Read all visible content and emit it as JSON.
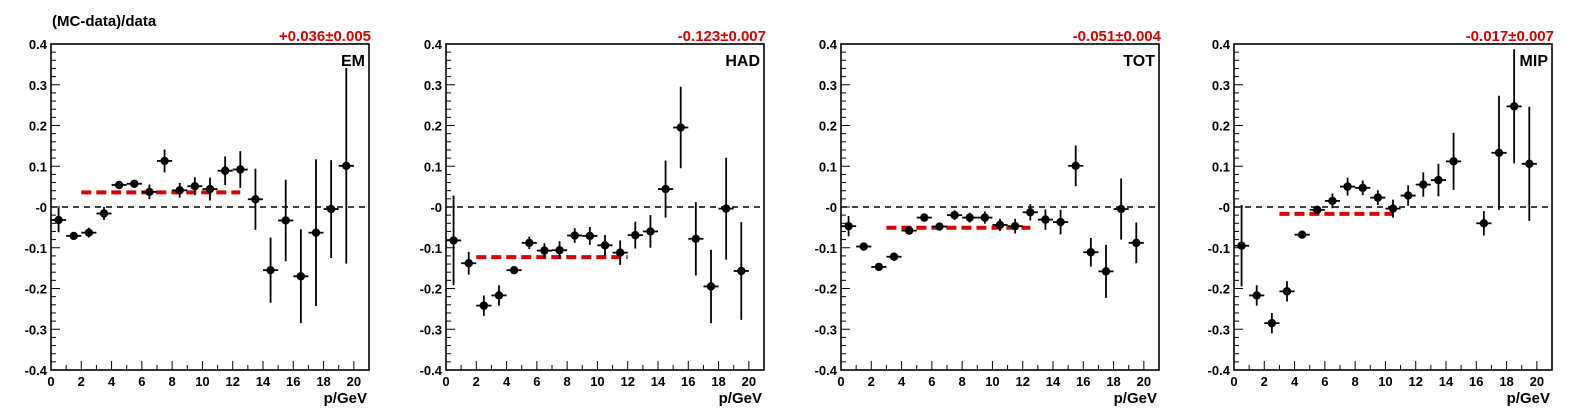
{
  "figure": {
    "ylabel": "(MC-data)/data",
    "colors": {
      "points": "#000000",
      "fit": "#dd0000",
      "frame": "#000000",
      "zero_line": "#000000"
    }
  },
  "chart_data": [
    {
      "type": "scatter",
      "panel_label": "EM",
      "fit_label": "+0.036±0.005",
      "xlabel": "p/GeV",
      "xlim": [
        0,
        21
      ],
      "ylim": [
        -0.4,
        0.4
      ],
      "x_ticks": [
        "0",
        "2",
        "4",
        "6",
        "8",
        "10",
        "12",
        "14",
        "16",
        "18",
        "20"
      ],
      "y_ticks": [
        "-0.4",
        "-0.3",
        "-0.2",
        "-0.1",
        "-0",
        "0.1",
        "0.2",
        "0.3",
        "0.4"
      ],
      "fit": {
        "value": 0.036,
        "x_range": [
          2,
          12.5
        ]
      },
      "points": [
        {
          "x": 0.5,
          "y": -0.032,
          "err": 0.03
        },
        {
          "x": 1.5,
          "y": -0.071,
          "err": 0.008
        },
        {
          "x": 2.5,
          "y": -0.063,
          "err": 0.012
        },
        {
          "x": 3.5,
          "y": -0.016,
          "err": 0.016
        },
        {
          "x": 4.5,
          "y": 0.054,
          "err": 0.008
        },
        {
          "x": 5.5,
          "y": 0.057,
          "err": 0.009
        },
        {
          "x": 6.5,
          "y": 0.037,
          "err": 0.018
        },
        {
          "x": 7.5,
          "y": 0.113,
          "err": 0.028
        },
        {
          "x": 8.5,
          "y": 0.041,
          "err": 0.018
        },
        {
          "x": 9.5,
          "y": 0.051,
          "err": 0.022
        },
        {
          "x": 10.5,
          "y": 0.044,
          "err": 0.028
        },
        {
          "x": 11.5,
          "y": 0.089,
          "err": 0.035
        },
        {
          "x": 12.5,
          "y": 0.092,
          "err": 0.045
        },
        {
          "x": 13.5,
          "y": 0.019,
          "err": 0.075
        },
        {
          "x": 14.5,
          "y": -0.155,
          "err": 0.08
        },
        {
          "x": 15.5,
          "y": -0.033,
          "err": 0.1
        },
        {
          "x": 16.5,
          "y": -0.17,
          "err": 0.115
        },
        {
          "x": 17.5,
          "y": -0.063,
          "err": 0.18
        },
        {
          "x": 18.5,
          "y": -0.005,
          "err": 0.12
        },
        {
          "x": 19.5,
          "y": 0.101,
          "err": 0.24
        }
      ]
    },
    {
      "type": "scatter",
      "panel_label": "HAD",
      "fit_label": "-0.123±0.007",
      "xlabel": "p/GeV",
      "xlim": [
        0,
        21
      ],
      "ylim": [
        -0.4,
        0.4
      ],
      "x_ticks": [
        "0",
        "2",
        "4",
        "6",
        "8",
        "10",
        "12",
        "14",
        "16",
        "18",
        "20"
      ],
      "y_ticks": [
        "-0.4",
        "-0.3",
        "-0.2",
        "-0.1",
        "-0",
        "0.1",
        "0.2",
        "0.3",
        "0.4"
      ],
      "fit": {
        "value": -0.123,
        "x_range": [
          2,
          12
        ]
      },
      "points": [
        {
          "x": 0.5,
          "y": -0.082,
          "err": 0.11
        },
        {
          "x": 1.5,
          "y": -0.138,
          "err": 0.028
        },
        {
          "x": 2.5,
          "y": -0.242,
          "err": 0.025
        },
        {
          "x": 3.5,
          "y": -0.217,
          "err": 0.025
        },
        {
          "x": 4.5,
          "y": -0.155,
          "err": 0.008
        },
        {
          "x": 5.5,
          "y": -0.088,
          "err": 0.015
        },
        {
          "x": 6.5,
          "y": -0.107,
          "err": 0.018
        },
        {
          "x": 7.5,
          "y": -0.106,
          "err": 0.022
        },
        {
          "x": 8.5,
          "y": -0.07,
          "err": 0.018
        },
        {
          "x": 9.5,
          "y": -0.071,
          "err": 0.022
        },
        {
          "x": 10.5,
          "y": -0.094,
          "err": 0.025
        },
        {
          "x": 11.5,
          "y": -0.112,
          "err": 0.03
        },
        {
          "x": 12.5,
          "y": -0.069,
          "err": 0.033
        },
        {
          "x": 13.5,
          "y": -0.06,
          "err": 0.04
        },
        {
          "x": 14.5,
          "y": 0.044,
          "err": 0.07
        },
        {
          "x": 15.5,
          "y": 0.195,
          "err": 0.1
        },
        {
          "x": 16.5,
          "y": -0.078,
          "err": 0.09
        },
        {
          "x": 17.5,
          "y": -0.195,
          "err": 0.09
        },
        {
          "x": 18.5,
          "y": -0.004,
          "err": 0.125
        },
        {
          "x": 19.5,
          "y": -0.157,
          "err": 0.12
        }
      ]
    },
    {
      "type": "scatter",
      "panel_label": "TOT",
      "fit_label": "-0.051±0.004",
      "xlabel": "p/GeV",
      "xlim": [
        0,
        21
      ],
      "ylim": [
        -0.4,
        0.4
      ],
      "x_ticks": [
        "0",
        "2",
        "4",
        "6",
        "8",
        "10",
        "12",
        "14",
        "16",
        "18",
        "20"
      ],
      "y_ticks": [
        "-0.4",
        "-0.3",
        "-0.2",
        "-0.1",
        "-0",
        "0.1",
        "0.2",
        "0.3",
        "0.4"
      ],
      "fit": {
        "value": -0.051,
        "x_range": [
          3,
          12.5
        ]
      },
      "points": [
        {
          "x": 0.5,
          "y": -0.047,
          "err": 0.025
        },
        {
          "x": 1.5,
          "y": -0.097,
          "err": 0.01
        },
        {
          "x": 2.5,
          "y": -0.147,
          "err": 0.008
        },
        {
          "x": 3.5,
          "y": -0.122,
          "err": 0.01
        },
        {
          "x": 4.5,
          "y": -0.058,
          "err": 0.008
        },
        {
          "x": 5.5,
          "y": -0.026,
          "err": 0.008
        },
        {
          "x": 6.5,
          "y": -0.048,
          "err": 0.01
        },
        {
          "x": 7.5,
          "y": -0.02,
          "err": 0.012
        },
        {
          "x": 8.5,
          "y": -0.026,
          "err": 0.012
        },
        {
          "x": 9.5,
          "y": -0.026,
          "err": 0.015
        },
        {
          "x": 10.5,
          "y": -0.044,
          "err": 0.015
        },
        {
          "x": 11.5,
          "y": -0.047,
          "err": 0.018
        },
        {
          "x": 12.5,
          "y": -0.013,
          "err": 0.02
        },
        {
          "x": 13.5,
          "y": -0.031,
          "err": 0.025
        },
        {
          "x": 14.5,
          "y": -0.037,
          "err": 0.03
        },
        {
          "x": 15.5,
          "y": 0.101,
          "err": 0.05
        },
        {
          "x": 16.5,
          "y": -0.111,
          "err": 0.035
        },
        {
          "x": 17.5,
          "y": -0.158,
          "err": 0.065
        },
        {
          "x": 18.5,
          "y": -0.005,
          "err": 0.075
        },
        {
          "x": 19.5,
          "y": -0.088,
          "err": 0.05
        }
      ]
    },
    {
      "type": "scatter",
      "panel_label": "MIP",
      "fit_label": "-0.017±0.007",
      "xlabel": "p/GeV",
      "xlim": [
        0,
        21
      ],
      "ylim": [
        -0.4,
        0.4
      ],
      "x_ticks": [
        "0",
        "2",
        "4",
        "6",
        "8",
        "10",
        "12",
        "14",
        "16",
        "18",
        "20"
      ],
      "y_ticks": [
        "-0.4",
        "-0.3",
        "-0.2",
        "-0.1",
        "-0",
        "0.1",
        "0.2",
        "0.3",
        "0.4"
      ],
      "fit": {
        "value": -0.017,
        "x_range": [
          3,
          10.5
        ]
      },
      "points": [
        {
          "x": 0.5,
          "y": -0.095,
          "err": 0.1
        },
        {
          "x": 1.5,
          "y": -0.217,
          "err": 0.025
        },
        {
          "x": 2.5,
          "y": -0.285,
          "err": 0.025
        },
        {
          "x": 3.5,
          "y": -0.207,
          "err": 0.025
        },
        {
          "x": 4.5,
          "y": -0.068,
          "err": 0.006
        },
        {
          "x": 5.5,
          "y": -0.007,
          "err": 0.008
        },
        {
          "x": 6.5,
          "y": 0.015,
          "err": 0.018
        },
        {
          "x": 7.5,
          "y": 0.05,
          "err": 0.022
        },
        {
          "x": 8.5,
          "y": 0.047,
          "err": 0.018
        },
        {
          "x": 9.5,
          "y": 0.023,
          "err": 0.018
        },
        {
          "x": 10.5,
          "y": -0.004,
          "err": 0.022
        },
        {
          "x": 11.5,
          "y": 0.028,
          "err": 0.025
        },
        {
          "x": 12.5,
          "y": 0.055,
          "err": 0.03
        },
        {
          "x": 13.5,
          "y": 0.066,
          "err": 0.04
        },
        {
          "x": 14.5,
          "y": 0.112,
          "err": 0.07
        },
        {
          "x": 16.5,
          "y": -0.04,
          "err": 0.03
        },
        {
          "x": 17.5,
          "y": 0.133,
          "err": 0.14
        },
        {
          "x": 18.5,
          "y": 0.247,
          "err": 0.14
        },
        {
          "x": 19.5,
          "y": 0.106,
          "err": 0.14
        }
      ]
    }
  ]
}
